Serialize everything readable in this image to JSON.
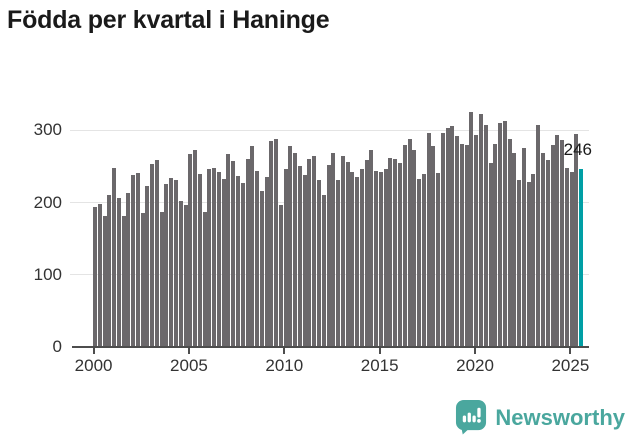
{
  "title": "Födda per kvartal i Haninge",
  "chart_data": {
    "type": "bar",
    "title": "Födda per kvartal i Haninge",
    "frequency": "quarterly",
    "start_period": "2000 Q1",
    "end_period": "2025 Q3",
    "values": [
      194,
      198,
      181,
      211,
      248,
      207,
      182,
      213,
      238,
      241,
      185,
      223,
      254,
      259,
      187,
      226,
      234,
      231,
      202,
      197,
      267,
      273,
      240,
      187,
      247,
      248,
      243,
      232,
      267,
      258,
      237,
      227,
      261,
      278,
      244,
      216,
      236,
      285,
      288,
      196,
      247,
      279,
      268,
      250,
      238,
      260,
      265,
      231,
      210,
      252,
      268,
      231,
      264,
      256,
      243,
      235,
      246,
      259,
      273,
      244,
      243,
      246,
      262,
      260,
      255,
      280,
      288,
      273,
      232,
      240,
      297,
      279,
      241,
      297,
      303,
      306,
      292,
      281,
      280,
      325,
      294,
      322,
      308,
      255,
      281,
      310,
      313,
      288,
      268,
      231,
      276,
      228,
      239,
      307,
      269,
      259,
      280,
      294,
      286,
      248,
      242,
      295,
      246
    ],
    "x_tick_labels": [
      "2000",
      "2005",
      "2010",
      "2015",
      "2020",
      "2025"
    ],
    "quarters_per_x_tick": 20,
    "y_ticks": [
      0,
      100,
      200,
      300
    ],
    "ylim": [
      0,
      342
    ],
    "grid": true,
    "legend": "none",
    "bar_color": "#6b686b",
    "highlight_color": "#009fa5",
    "highlight_last": true,
    "last_value_label": "246"
  },
  "annotation": {
    "text": "246"
  },
  "footer": {
    "brand": "Newsworthy",
    "brand_color": "#4aa79e"
  }
}
